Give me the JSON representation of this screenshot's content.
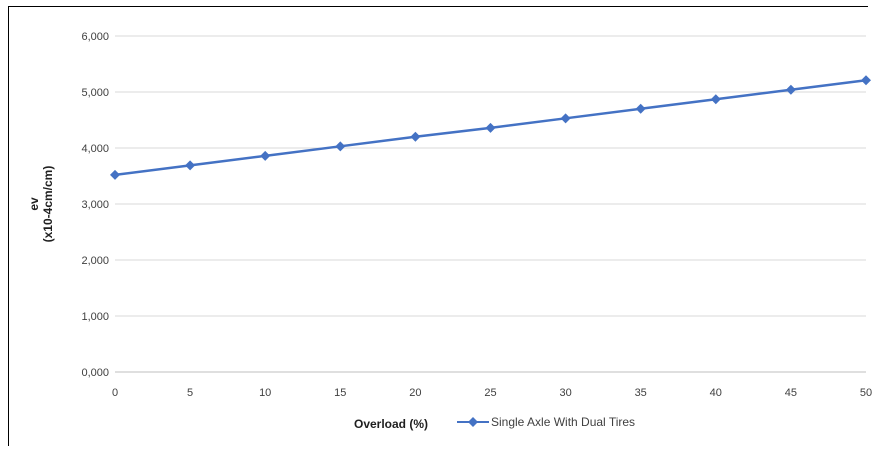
{
  "chart_data": {
    "type": "line",
    "title": "",
    "xlabel": "Overload (%)",
    "ylabel": "ev",
    "ylabel_unit": "(x10-4cm/cm)",
    "x": [
      0,
      5,
      10,
      15,
      20,
      25,
      30,
      35,
      40,
      45,
      50
    ],
    "x_ticks": [
      "0",
      "5",
      "10",
      "15",
      "20",
      "25",
      "30",
      "35",
      "40",
      "45",
      "50"
    ],
    "y_ticks": [
      "0,000",
      "1,000",
      "2,000",
      "3,000",
      "4,000",
      "5,000",
      "6,000"
    ],
    "ylim": [
      0,
      6
    ],
    "xlim": [
      0,
      50
    ],
    "grid": true,
    "legend_position": "bottom",
    "series": [
      {
        "name": "Single Axle With Dual Tires",
        "color": "#4472c4",
        "marker": "diamond",
        "values": [
          3.52,
          3.69,
          3.86,
          4.03,
          4.2,
          4.36,
          4.53,
          4.7,
          4.87,
          5.04,
          5.21
        ]
      }
    ]
  }
}
